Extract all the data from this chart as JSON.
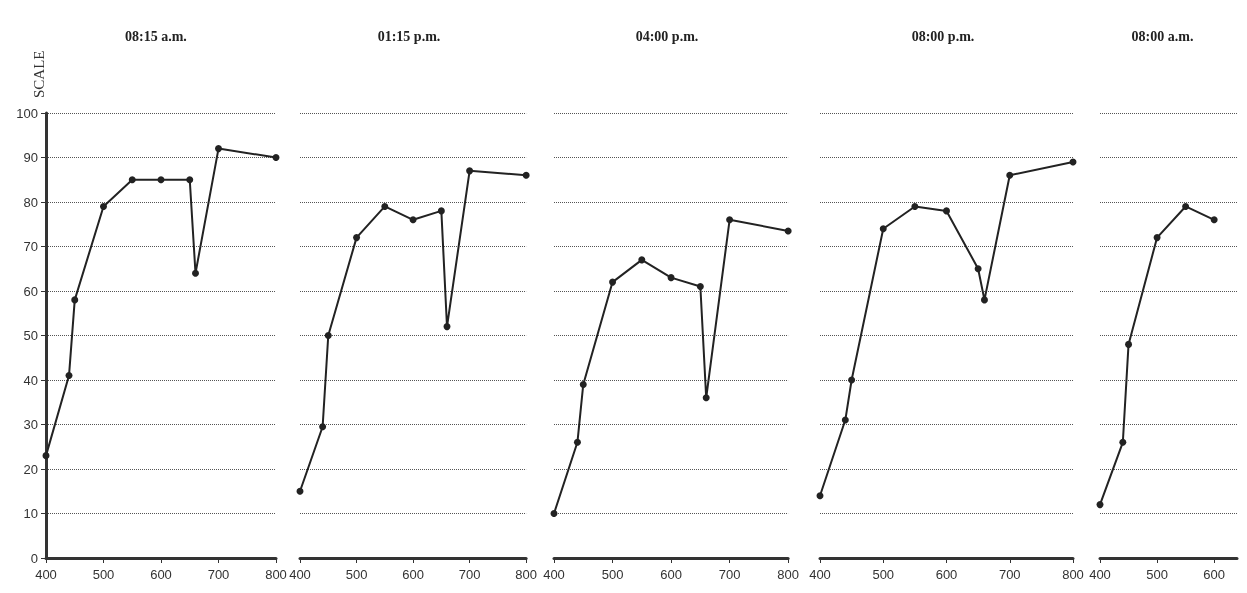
{
  "chart_data": [
    {
      "type": "line",
      "title": "08:15 a.m.",
      "ylabel": "SCALE",
      "x": [
        400,
        440,
        450,
        500,
        550,
        600,
        650,
        660,
        700,
        800
      ],
      "series": [
        {
          "color": "#222222",
          "values": [
            23,
            41,
            58,
            79,
            85,
            85,
            85,
            64,
            92,
            90
          ]
        }
      ],
      "xlim": [
        400,
        800
      ],
      "xticks": [
        400,
        500,
        600,
        700,
        800
      ],
      "ylim": [
        0,
        100
      ],
      "yticks": [
        0,
        10,
        20,
        30,
        40,
        50,
        60,
        70,
        80,
        90,
        100
      ],
      "grid": "y",
      "marker": "circle"
    },
    {
      "type": "line",
      "title": "01:15 p.m.",
      "x": [
        400,
        440,
        450,
        500,
        550,
        600,
        650,
        660,
        700,
        800
      ],
      "series": [
        {
          "color": "#222222",
          "values": [
            15,
            29.5,
            50,
            72,
            79,
            76,
            78,
            52,
            87,
            86
          ]
        }
      ],
      "xlim": [
        400,
        800
      ],
      "xticks": [
        400,
        500,
        600,
        700,
        800
      ],
      "ylim": [
        0,
        100
      ],
      "yticks": [
        0,
        10,
        20,
        30,
        40,
        50,
        60,
        70,
        80,
        90,
        100
      ],
      "grid": "y",
      "marker": "circle",
      "tick_labels": "x"
    },
    {
      "type": "line",
      "title": "04:00 p.m.",
      "x": [
        400,
        440,
        450,
        500,
        550,
        600,
        650,
        660,
        700,
        800
      ],
      "series": [
        {
          "color": "#222222",
          "values": [
            10,
            26,
            39,
            62,
            67,
            63,
            61,
            36,
            76,
            73.5
          ]
        }
      ],
      "xlim": [
        400,
        800
      ],
      "xticks": [
        400,
        500,
        600,
        700,
        800
      ],
      "ylim": [
        0,
        100
      ],
      "yticks": [
        0,
        10,
        20,
        30,
        40,
        50,
        60,
        70,
        80,
        90,
        100
      ],
      "grid": "y",
      "marker": "circle",
      "tick_labels": "x"
    },
    {
      "type": "line",
      "title": "08:00 p.m.",
      "x": [
        400,
        440,
        450,
        500,
        550,
        600,
        650,
        660,
        700,
        800
      ],
      "series": [
        {
          "color": "#222222",
          "values": [
            14,
            31,
            40,
            74,
            79,
            78,
            65,
            58,
            86,
            89
          ]
        }
      ],
      "xlim": [
        400,
        800
      ],
      "xticks": [
        400,
        500,
        600,
        700,
        800
      ],
      "ylim": [
        0,
        100
      ],
      "yticks": [
        0,
        10,
        20,
        30,
        40,
        50,
        60,
        70,
        80,
        90,
        100
      ],
      "grid": "y",
      "marker": "circle",
      "tick_labels": "x"
    },
    {
      "type": "line",
      "title": "08:00 a.m.",
      "x": [
        400,
        440,
        450,
        500,
        550,
        600
      ],
      "series": [
        {
          "color": "#222222",
          "values": [
            12,
            26,
            48,
            72,
            79,
            76
          ]
        }
      ],
      "xlim": [
        400,
        640
      ],
      "xticks": [
        400,
        500,
        600
      ],
      "ylim": [
        0,
        100
      ],
      "yticks": [
        0,
        10,
        20,
        30,
        40,
        50,
        60,
        70,
        80,
        90,
        100
      ],
      "grid": "y",
      "marker": "circle",
      "tick_labels": "x"
    }
  ]
}
